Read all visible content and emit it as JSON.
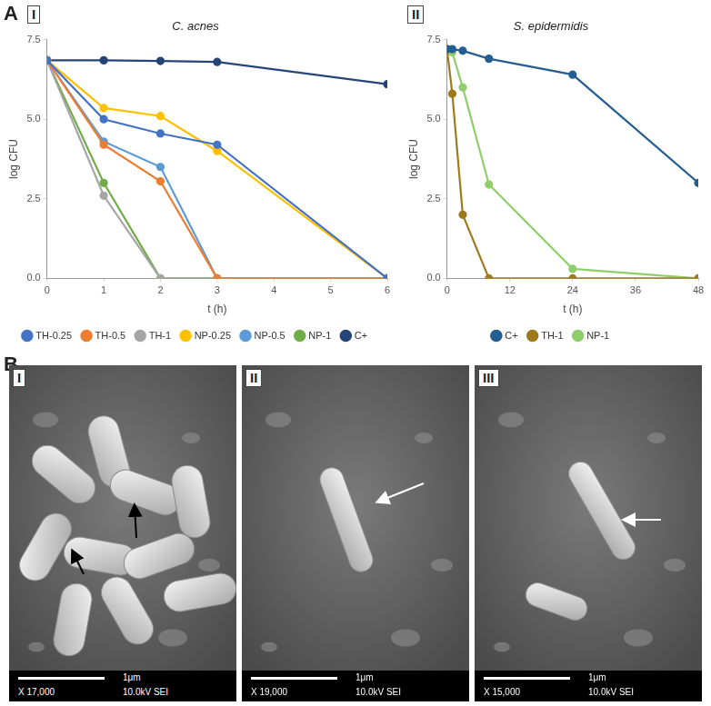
{
  "figure": {
    "panels": [
      {
        "label": "A",
        "subpanels": [
          {
            "label": "I"
          },
          {
            "label": "II"
          }
        ]
      },
      {
        "label": "B",
        "subpanels": [
          {
            "label": "I",
            "scale_bar": "1μm",
            "magnification": "X 17,000",
            "detector": "10.0kV SEI"
          },
          {
            "label": "II",
            "scale_bar": "1μm",
            "magnification": "X 19,000",
            "detector": "10.0kV SEI"
          },
          {
            "label": "III",
            "scale_bar": "1μm",
            "magnification": "X 15,000",
            "detector": "10.0kV SEI"
          }
        ]
      }
    ]
  },
  "chart_data": [
    {
      "type": "line",
      "title": "C. acnes",
      "x_label": "t (h)",
      "y_label": "log CFU",
      "x": [
        0,
        1,
        2,
        3,
        6
      ],
      "xlim": [
        0,
        6
      ],
      "xticks": [
        0,
        1,
        2,
        3,
        4,
        5,
        6
      ],
      "ylim": [
        0,
        7.5
      ],
      "yticks": [
        {
          "value": 0,
          "label": "0.0"
        },
        {
          "value": 2.5,
          "label": "2.5"
        },
        {
          "value": 5,
          "label": "5.0"
        },
        {
          "value": 7.5,
          "label": "7.5"
        }
      ],
      "grid": false,
      "legend": "bottom",
      "marker": "circle",
      "series": [
        {
          "name": "TH-0.25",
          "color": "#4472c4",
          "values": [
            6.85,
            5.0,
            4.55,
            4.2,
            0
          ]
        },
        {
          "name": "TH-0.5",
          "color": "#ed7d31",
          "values": [
            6.85,
            4.2,
            3.05,
            0,
            0
          ]
        },
        {
          "name": "TH-1",
          "color": "#a5a5a5",
          "values": [
            6.85,
            2.6,
            0,
            0,
            0
          ]
        },
        {
          "name": "NP-0.25",
          "color": "#ffc000",
          "values": [
            6.85,
            5.35,
            5.1,
            4.0,
            0
          ]
        },
        {
          "name": "NP-0.5",
          "color": "#5b9bd5",
          "values": [
            6.85,
            4.3,
            3.5,
            0,
            0
          ]
        },
        {
          "name": "NP-1",
          "color": "#70ad47",
          "values": [
            6.85,
            3.0,
            0,
            0,
            0
          ]
        },
        {
          "name": "C+",
          "color": "#264478",
          "values": [
            6.85,
            6.85,
            6.83,
            6.8,
            6.1
          ]
        }
      ]
    },
    {
      "type": "line",
      "title": "S. epidermidis",
      "x_label": "t (h)",
      "y_label": "log CFU",
      "x": [
        0,
        1,
        3,
        8,
        24,
        48
      ],
      "xlim": [
        0,
        48
      ],
      "xticks": [
        0,
        12,
        24,
        36,
        48
      ],
      "ylim": [
        0,
        7.5
      ],
      "yticks": [
        {
          "value": 0,
          "label": "0.0"
        },
        {
          "value": 2.5,
          "label": "2.5"
        },
        {
          "value": 5,
          "label": "5.0"
        },
        {
          "value": 7.5,
          "label": "7.5"
        }
      ],
      "grid": false,
      "legend": "bottom",
      "marker": "circle",
      "series": [
        {
          "name": "C+",
          "color": "#255e91",
          "values": [
            7.2,
            7.2,
            7.15,
            6.9,
            6.4,
            3.0
          ]
        },
        {
          "name": "TH-1",
          "color": "#9e7a1b",
          "values": [
            7.2,
            5.8,
            2.0,
            0,
            0,
            0
          ]
        },
        {
          "name": "NP-1",
          "color": "#8fce6a",
          "values": [
            7.2,
            7.1,
            6.0,
            2.95,
            0.3,
            0
          ]
        }
      ]
    }
  ]
}
